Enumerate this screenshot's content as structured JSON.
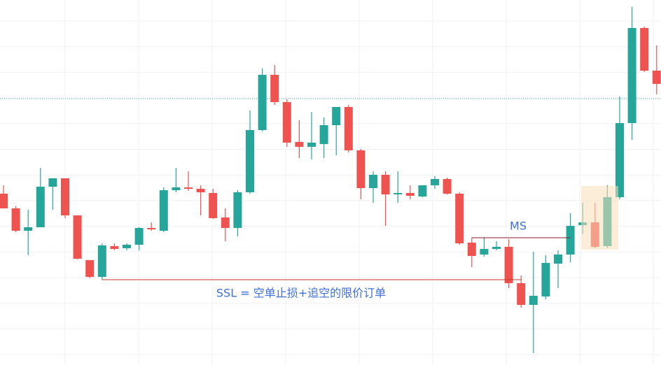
{
  "chart_data": {
    "type": "candlestick",
    "ylim": [
      0,
      522
    ],
    "up_color": "#26a69a",
    "down_color": "#ef5350",
    "open": [
      245,
      224,
      192,
      197,
      255,
      267,
      214,
      150,
      126,
      170,
      167,
      172,
      196,
      192,
      250,
      254,
      252,
      246,
      211,
      196,
      247,
      336,
      415,
      376,
      319,
      312,
      316,
      343,
      369,
      307,
      253,
      272,
      244,
      246,
      241,
      257,
      266,
      245,
      175,
      158,
      166,
      169,
      117,
      86,
      98,
      145,
      158,
      200,
      204,
      170,
      240,
      346,
      482,
      421
    ],
    "high": [
      257,
      227,
      222,
      282,
      267,
      267,
      214,
      150,
      174,
      174,
      174,
      197,
      204,
      254,
      282,
      277,
      257,
      252,
      224,
      250,
      364,
      424,
      429,
      380,
      350,
      362,
      354,
      369,
      372,
      309,
      277,
      277,
      277,
      257,
      257,
      270,
      268,
      247,
      182,
      182,
      177,
      180,
      128,
      162,
      157,
      164,
      217,
      232,
      232,
      257,
      384,
      512,
      484,
      457
    ],
    "low": [
      224,
      190,
      157,
      197,
      222,
      210,
      151,
      124,
      122,
      164,
      164,
      164,
      192,
      190,
      247,
      249,
      214,
      209,
      177,
      184,
      245,
      334,
      372,
      312,
      296,
      294,
      296,
      300,
      304,
      237,
      232,
      199,
      232,
      237,
      240,
      252,
      244,
      172,
      140,
      155,
      164,
      110,
      82,
      17,
      94,
      110,
      147,
      187,
      167,
      167,
      237,
      322,
      419,
      387
    ],
    "close": [
      224,
      192,
      197,
      255,
      267,
      214,
      152,
      126,
      171,
      166,
      172,
      196,
      194,
      250,
      254,
      252,
      247,
      210,
      196,
      247,
      336,
      415,
      376,
      318,
      312,
      318,
      343,
      369,
      307,
      253,
      272,
      244,
      246,
      242,
      257,
      266,
      245,
      174,
      156,
      166,
      169,
      117,
      86,
      99,
      146,
      158,
      199,
      204,
      169,
      240,
      346,
      482,
      421,
      402
    ],
    "reference_line": 381,
    "annotations": [
      {
        "label": "SSL = 空单止损+追空的限价订单",
        "value": 122
      },
      {
        "label": "MS",
        "value": 182
      }
    ]
  }
}
